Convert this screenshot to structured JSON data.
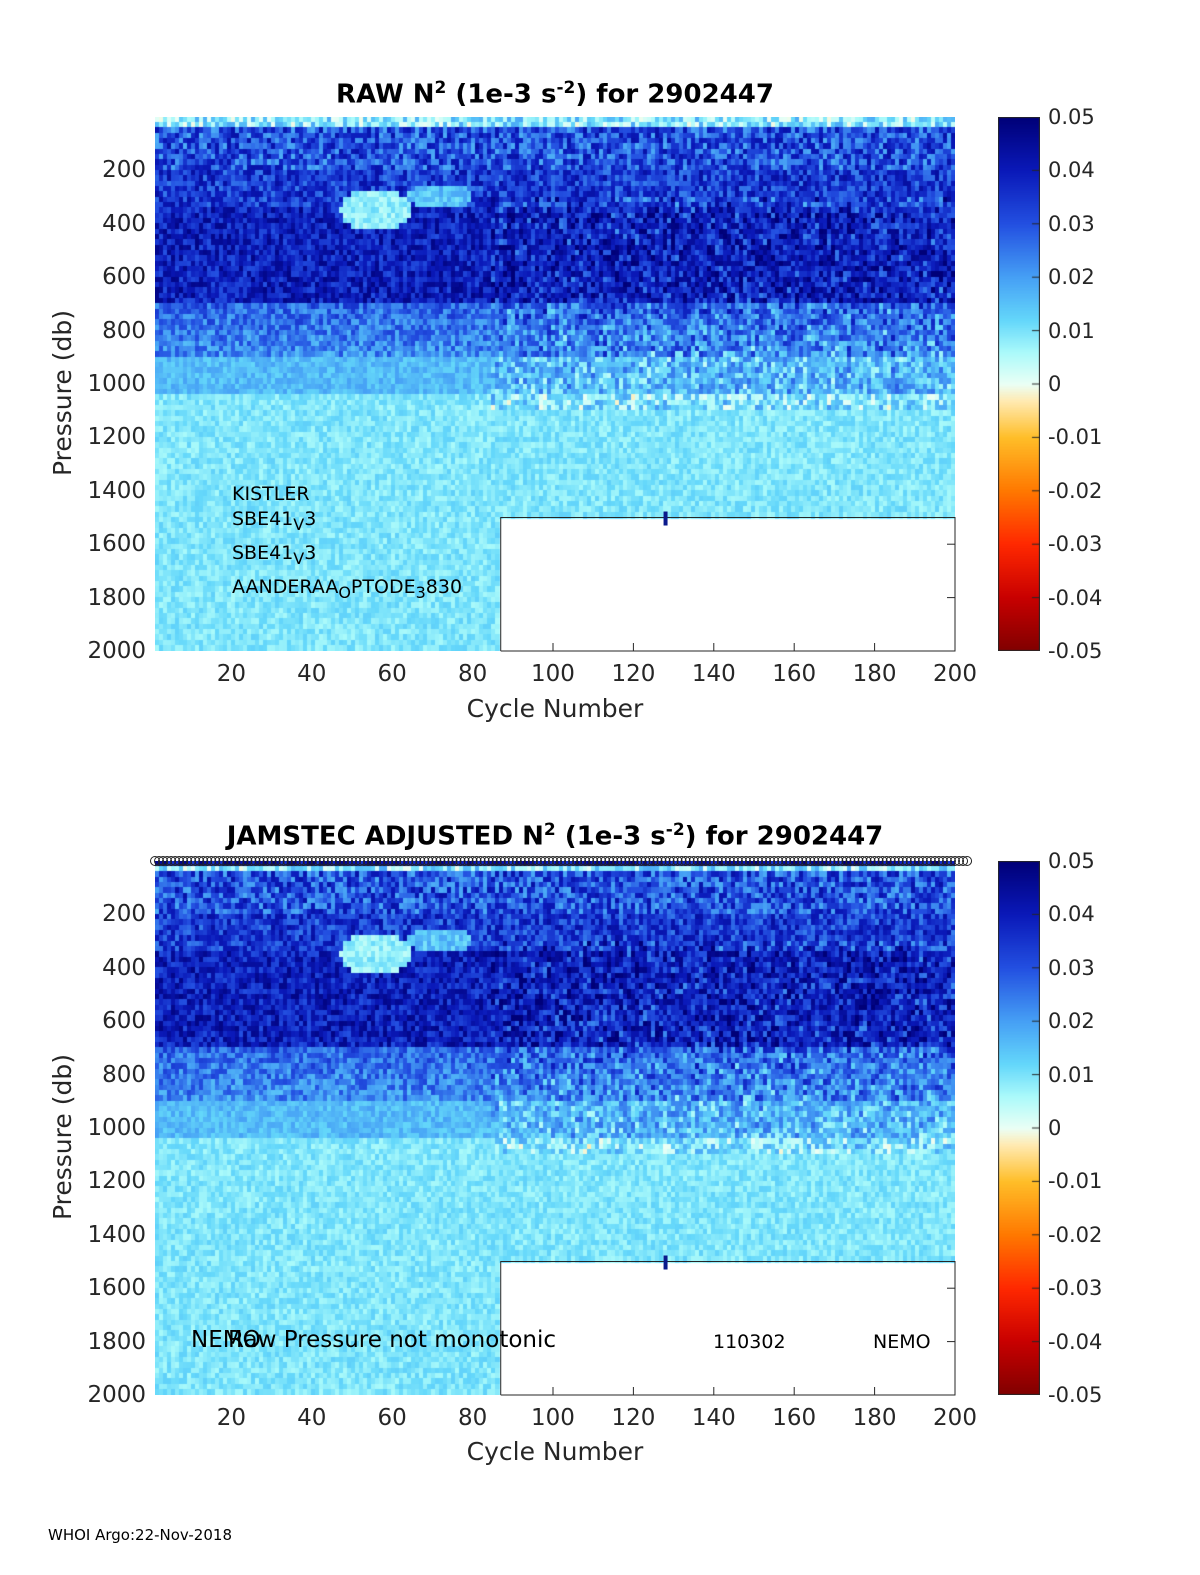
{
  "chart_data": [
    {
      "type": "heatmap",
      "title_parts": [
        "RAW N",
        "2",
        " (1e-3 s",
        "-2",
        ") for 2902447"
      ],
      "xlabel": "Cycle Number",
      "ylabel": "Pressure (db)",
      "xlim": [
        1,
        200
      ],
      "ylim": [
        2000,
        0
      ],
      "y_reversed": true,
      "xticks": [
        "20",
        "40",
        "60",
        "80",
        "100",
        "120",
        "140",
        "160",
        "180",
        "200"
      ],
      "xtick_values": [
        20,
        40,
        60,
        80,
        100,
        120,
        140,
        160,
        180,
        200
      ],
      "yticks": [
        "200",
        "400",
        "600",
        "800",
        "1000",
        "1200",
        "1400",
        "1600",
        "1800",
        "2000"
      ],
      "ytick_values": [
        200,
        400,
        600,
        800,
        1000,
        1200,
        1400,
        1600,
        1800,
        2000
      ],
      "colorbar": {
        "range": [
          -0.05,
          0.05
        ],
        "ticks": [
          "0.05",
          "0.04",
          "0.03",
          "0.02",
          "0.01",
          "0",
          "-0.01",
          "-0.02",
          "-0.03",
          "-0.04",
          "-0.05"
        ],
        "tick_values": [
          0.05,
          0.04,
          0.03,
          0.02,
          0.01,
          0,
          -0.01,
          -0.02,
          -0.03,
          -0.04,
          -0.05
        ]
      },
      "profile_depth_change": {
        "cycle": 87,
        "max_pressure_after": 1500
      },
      "sensor_labels": [
        {
          "text": "KISTLER",
          "sub": "",
          "after": ""
        },
        {
          "text": "SBE41",
          "sub": "V",
          "after": "3"
        },
        {
          "text": "SBE41",
          "sub": "V",
          "after": "3"
        },
        {
          "text": "AANDERAA",
          "sub": "O",
          "after": "PTODE",
          "sub2": "3",
          "after2": "830"
        }
      ],
      "marker": {
        "cycle": 128,
        "pressure": 1530
      }
    },
    {
      "type": "heatmap",
      "title_parts": [
        "JAMSTEC  ADJUSTED N",
        "2",
        " (1e-3 s",
        "-2",
        ") for 2902447"
      ],
      "xlabel": "Cycle Number",
      "ylabel": "Pressure (db)",
      "xlim": [
        1,
        200
      ],
      "ylim": [
        2000,
        0
      ],
      "y_reversed": true,
      "xticks": [
        "20",
        "40",
        "60",
        "80",
        "100",
        "120",
        "140",
        "160",
        "180",
        "200"
      ],
      "xtick_values": [
        20,
        40,
        60,
        80,
        100,
        120,
        140,
        160,
        180,
        200
      ],
      "yticks": [
        "200",
        "400",
        "600",
        "800",
        "1000",
        "1200",
        "1400",
        "1600",
        "1800",
        "2000"
      ],
      "ytick_values": [
        200,
        400,
        600,
        800,
        1000,
        1200,
        1400,
        1600,
        1800,
        2000
      ],
      "colorbar": {
        "range": [
          -0.05,
          0.05
        ],
        "ticks": [
          "0.05",
          "0.04",
          "0.03",
          "0.02",
          "0.01",
          "0",
          "-0.01",
          "-0.02",
          "-0.03",
          "-0.04",
          "-0.05"
        ],
        "tick_values": [
          0.05,
          0.04,
          0.03,
          0.02,
          0.01,
          0,
          -0.01,
          -0.02,
          -0.03,
          -0.04,
          -0.05
        ]
      },
      "profile_depth_change": {
        "cycle": 87,
        "max_pressure_after": 1500
      },
      "qc_circles": {
        "pressure": 0,
        "from_cycle": 1,
        "to_cycle": 203
      },
      "annotations": [
        {
          "text": "NEMO",
          "cycle": 10,
          "pressure": 1800
        },
        {
          "text": "Raw Pressure not monotonic",
          "cycle": 19,
          "pressure": 1800
        },
        {
          "text": "110302",
          "cycle": 141,
          "pressure": 1800
        },
        {
          "text": "NEMO",
          "cycle": 180,
          "pressure": 1800
        }
      ],
      "marker": {
        "cycle": 128,
        "pressure": 1530
      }
    }
  ],
  "footer": "WHOI Argo:22-Nov-2018"
}
